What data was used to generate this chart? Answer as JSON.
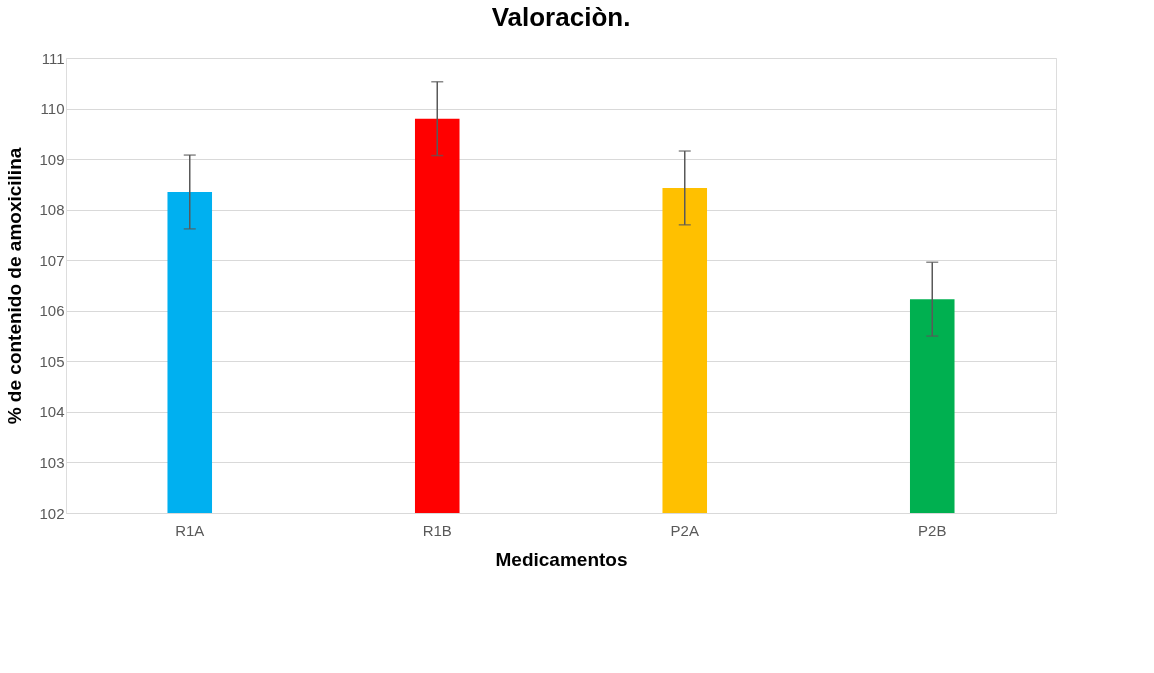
{
  "chart_data": {
    "type": "bar",
    "title": "Valoraciòn.",
    "xlabel": "Medicamentos",
    "ylabel": "% de contenido de amoxicilina",
    "categories": [
      "R1A",
      "R1B",
      "P2A",
      "P2B"
    ],
    "values": [
      108.35,
      109.8,
      108.43,
      106.23
    ],
    "colors": [
      "#00b0f0",
      "#ff0000",
      "#ffc000",
      "#00b050"
    ],
    "errors": [
      0.73,
      0.73,
      0.73,
      0.73
    ],
    "ylim": [
      102,
      111
    ],
    "yticks": [
      102,
      103,
      104,
      105,
      106,
      107,
      108,
      109,
      110,
      111
    ],
    "grid": "y"
  }
}
